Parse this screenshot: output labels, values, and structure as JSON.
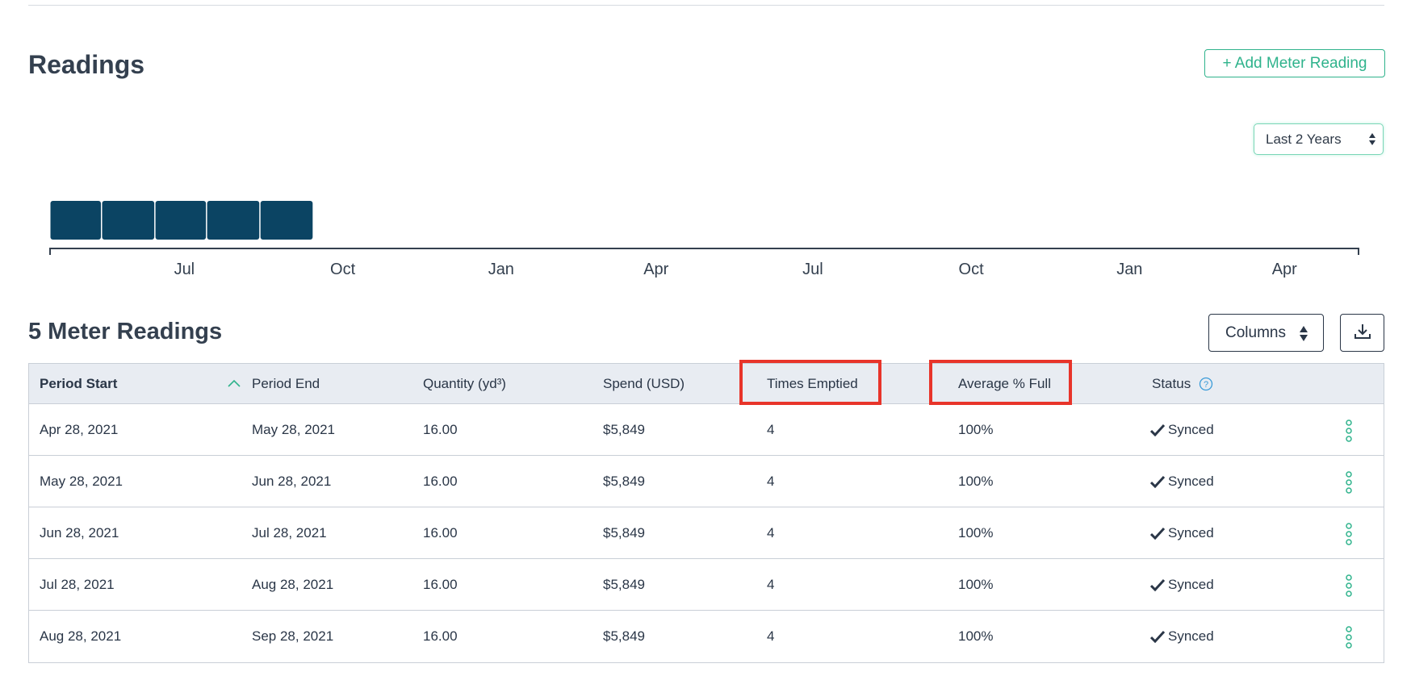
{
  "section": {
    "title": "Readings",
    "add_button": "+ Add Meter Reading",
    "range_select": "Last 2 Years"
  },
  "chart_data": {
    "type": "bar",
    "categories": [
      "Apr 28, 2021",
      "May 28, 2021",
      "Jun 28, 2021",
      "Jul 28, 2021",
      "Aug 28, 2021"
    ],
    "values": [
      1,
      1,
      1,
      1,
      1
    ],
    "x_tick_labels": [
      "Jul",
      "Oct",
      "Jan",
      "Apr",
      "Jul",
      "Oct",
      "Jan",
      "Apr"
    ],
    "x_range": [
      "2021-04-28",
      "2023-05-28"
    ],
    "bar_color": "#0b4463",
    "grid": false,
    "legend": "none"
  },
  "table": {
    "title": "5 Meter Readings",
    "columns_button": "Columns",
    "download_icon": "download-icon",
    "headers": {
      "period_start": "Period Start",
      "period_end": "Period End",
      "quantity": "Quantity (yd³)",
      "spend": "Spend (USD)",
      "times_emptied": "Times Emptied",
      "avg_full": "Average % Full",
      "status": "Status"
    },
    "rows": [
      {
        "period_start": "Apr 28, 2021",
        "period_end": "May 28, 2021",
        "quantity": "16.00",
        "spend": "$5,849",
        "times_emptied": "4",
        "avg_full": "100%",
        "status": "Synced"
      },
      {
        "period_start": "May 28, 2021",
        "period_end": "Jun 28, 2021",
        "quantity": "16.00",
        "spend": "$5,849",
        "times_emptied": "4",
        "avg_full": "100%",
        "status": "Synced"
      },
      {
        "period_start": "Jun 28, 2021",
        "period_end": "Jul 28, 2021",
        "quantity": "16.00",
        "spend": "$5,849",
        "times_emptied": "4",
        "avg_full": "100%",
        "status": "Synced"
      },
      {
        "period_start": "Jul 28, 2021",
        "period_end": "Aug 28, 2021",
        "quantity": "16.00",
        "spend": "$5,849",
        "times_emptied": "4",
        "avg_full": "100%",
        "status": "Synced"
      },
      {
        "period_start": "Aug 28, 2021",
        "period_end": "Sep 28, 2021",
        "quantity": "16.00",
        "spend": "$5,849",
        "times_emptied": "4",
        "avg_full": "100%",
        "status": "Synced"
      }
    ]
  },
  "colors": {
    "accent": "#2fb38c",
    "text": "#2a3647",
    "header_bg": "#e8ecf2",
    "highlight": "#e8342a",
    "help": "#3a9bd8"
  }
}
